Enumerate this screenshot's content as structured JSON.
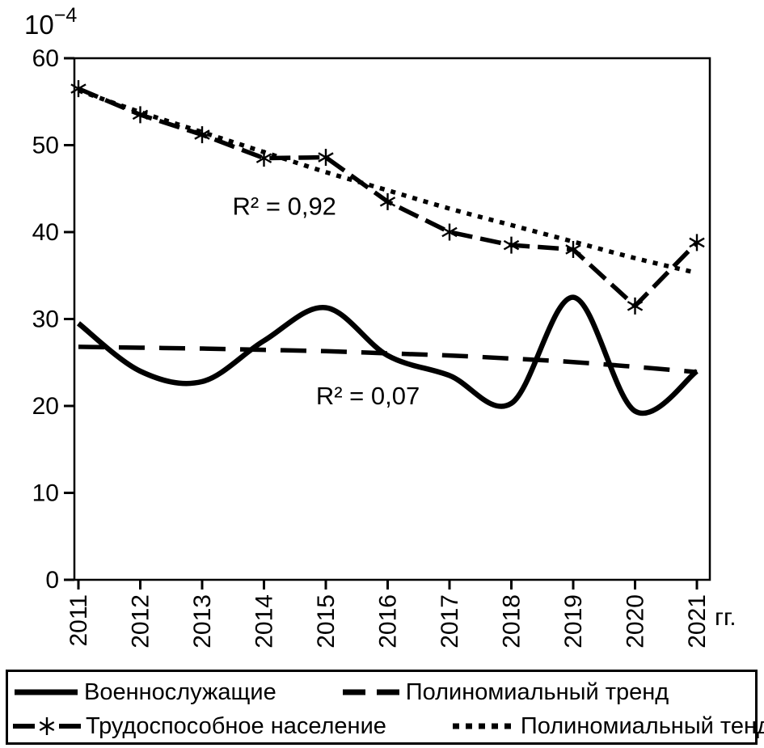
{
  "page": {
    "background": "#ffffff"
  },
  "chart_data": {
    "type": "line",
    "title": "",
    "x": [
      2011,
      2012,
      2013,
      2014,
      2015,
      2016,
      2017,
      2018,
      2019,
      2020,
      2021
    ],
    "x_axis_unit": "гг.",
    "y_axis_unit": {
      "base": "10",
      "exponent": "−4"
    },
    "ylim": [
      0,
      60
    ],
    "yticks": [
      0,
      10,
      20,
      30,
      40,
      50,
      60
    ],
    "line_color": "#000000",
    "grid": false,
    "legend_position": "bottom",
    "series": [
      {
        "name": "Военнослужащие",
        "style": "solid-smooth",
        "values": [
          29.5,
          24.0,
          22.8,
          27.5,
          31.3,
          25.8,
          23.5,
          20.3,
          32.5,
          19.4,
          24.0
        ]
      },
      {
        "name": "Полиномиальный тренд",
        "style": "long-dash",
        "values": [
          26.8,
          26.7,
          26.6,
          26.45,
          26.3,
          26.05,
          25.8,
          25.45,
          25.05,
          24.5,
          23.9
        ]
      },
      {
        "name": "Трудоспособное население",
        "style": "dash-star",
        "values": [
          56.5,
          53.5,
          51.2,
          48.5,
          48.6,
          43.5,
          40.0,
          38.5,
          38.0,
          31.5,
          38.8
        ]
      },
      {
        "name": "Полиномиальный тенд",
        "style": "dotted",
        "values": [
          56.3,
          53.8,
          51.5,
          49.2,
          46.9,
          44.8,
          42.7,
          40.8,
          38.9,
          37.0,
          35.3
        ]
      }
    ],
    "annotations": [
      {
        "text": "R² = 0,92",
        "x": 2014.33,
        "y": 42.0
      },
      {
        "text": "R² = 0,07",
        "x": 2015.68,
        "y": 20.2
      }
    ]
  }
}
